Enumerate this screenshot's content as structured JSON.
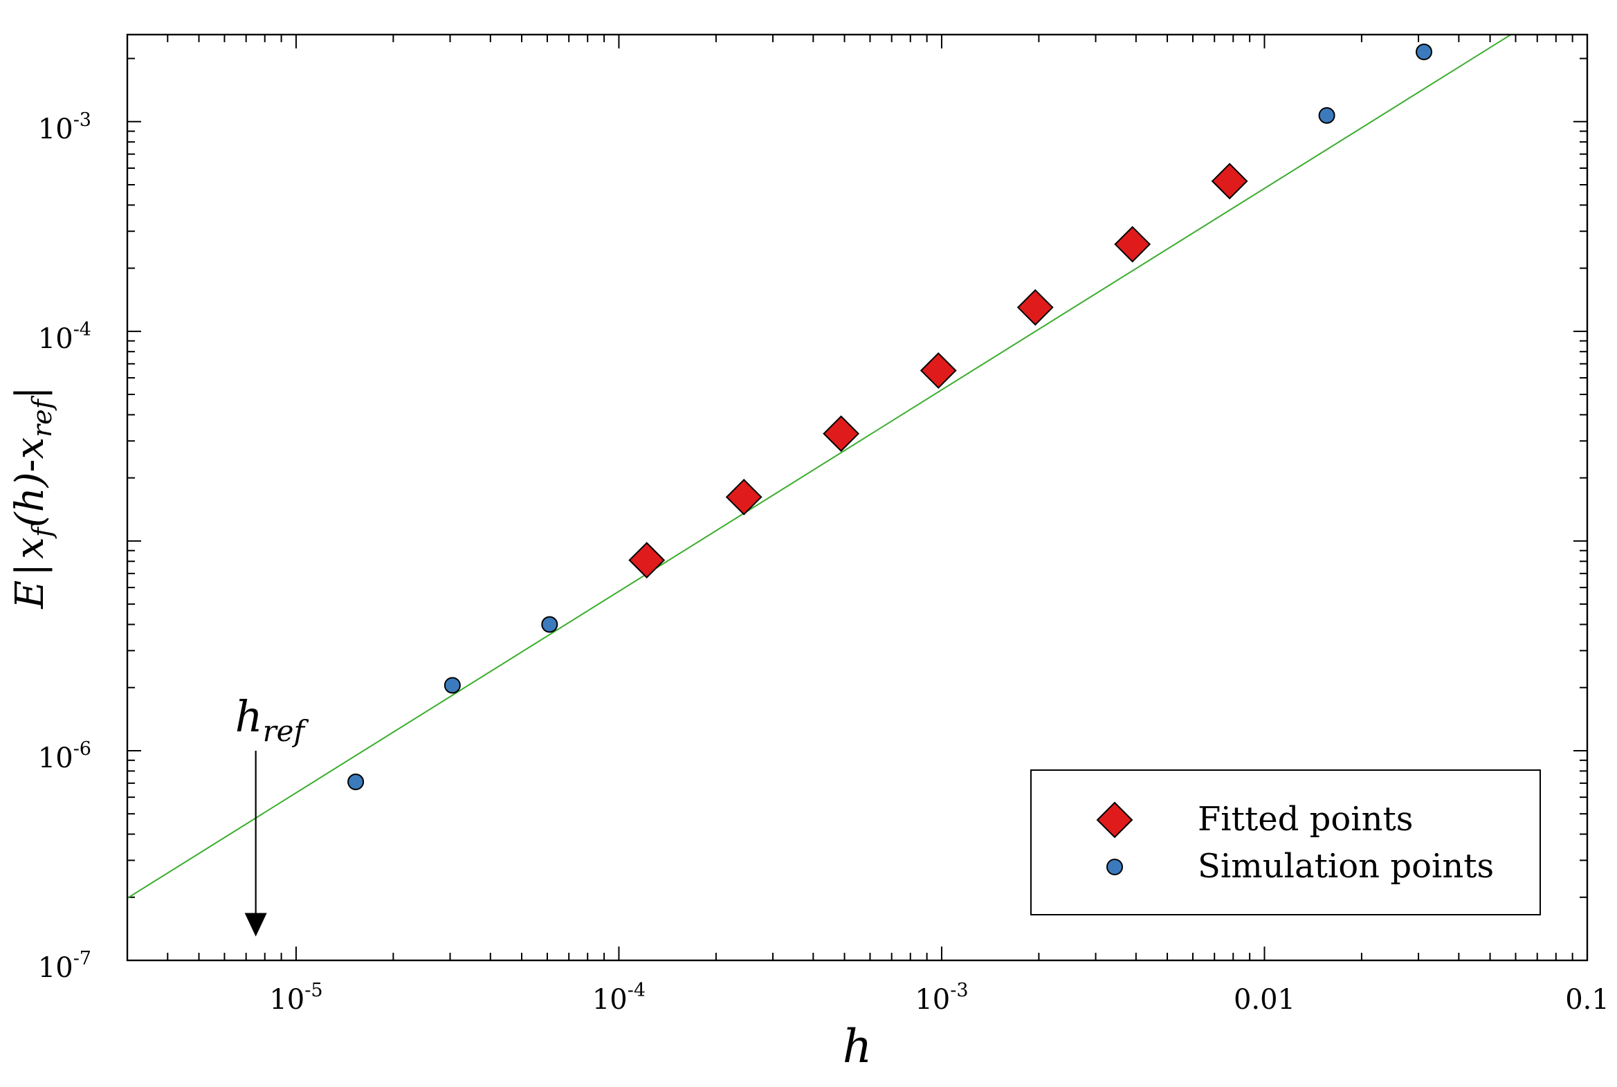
{
  "chart_data": {
    "type": "scatter",
    "xscale": "log",
    "yscale": "log",
    "xlim": [
      3e-06,
      0.1
    ],
    "ylim": [
      1e-07,
      0.0026
    ],
    "x_tick_labels": [
      {
        "value": 1e-05,
        "base": "10",
        "exp": "-5"
      },
      {
        "value": 0.0001,
        "base": "10",
        "exp": "-4"
      },
      {
        "value": 0.001,
        "base": "10",
        "exp": "-3"
      },
      {
        "value": 0.01,
        "base": "0.01",
        "exp": ""
      },
      {
        "value": 0.1,
        "base": "0.1",
        "exp": ""
      }
    ],
    "y_tick_labels": [
      {
        "value": 1e-07,
        "base": "10",
        "exp": "-7"
      },
      {
        "value": 1e-06,
        "base": "10",
        "exp": "-6"
      },
      {
        "value": 0.0001,
        "base": "10",
        "exp": "-4"
      },
      {
        "value": 0.001,
        "base": "10",
        "exp": "-3"
      }
    ],
    "xlabel": "h",
    "ylabel": {
      "e": "E",
      "bar": "|",
      "x": "x",
      "sub_f": "f",
      "h_part": "(h)",
      "dash": "-",
      "x2": "x",
      "sub_ref": "ref",
      "bar2": "|"
    },
    "series": [
      {
        "name": "Fitted points",
        "marker": "diamond",
        "color": "#e01b1b",
        "x": [
          0.000122,
          0.000244,
          0.000488,
          0.000977,
          0.00195,
          0.0039,
          0.0078
        ],
        "y": [
          8.1e-06,
          1.62e-05,
          3.25e-05,
          6.5e-05,
          0.00013,
          0.00026,
          0.00052
        ]
      },
      {
        "name": "Simulation points",
        "marker": "circle",
        "color": "#3b7bbd",
        "x": [
          1.53e-05,
          3.05e-05,
          6.1e-05,
          0.0156,
          0.0312
        ],
        "y": [
          7.1e-07,
          2.05e-06,
          4e-06,
          0.00107,
          0.00215
        ]
      }
    ],
    "fit_line": {
      "color": "#3aad2d",
      "x": [
        3e-06,
        0.058
      ],
      "y": [
        1.98e-07,
        0.0026
      ]
    },
    "annotation": {
      "text_main": "h",
      "text_sub": "ref",
      "x": 7.5e-06,
      "arrow_from_y": 1e-06,
      "arrow_to_y": 1.3e-07
    },
    "legend": {
      "position": "lower-right"
    }
  }
}
